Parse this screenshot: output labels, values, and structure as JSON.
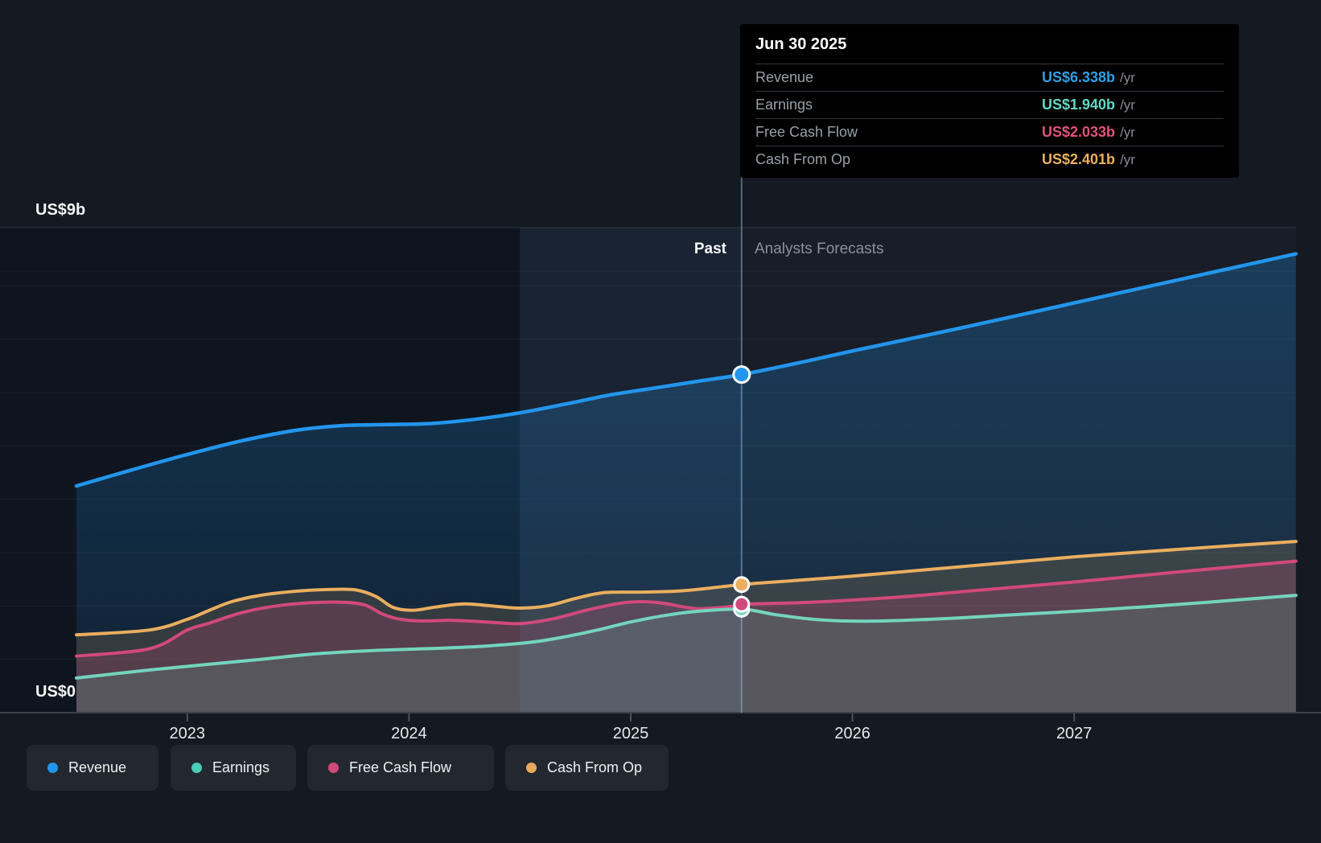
{
  "axis": {
    "top_label": "US$9b",
    "zero_label": "US$0"
  },
  "annotations": {
    "past_label": "Past",
    "forecast_label": "Analysts Forecasts"
  },
  "tooltip": {
    "date": "Jun 30 2025",
    "rows": [
      {
        "label": "Revenue",
        "value": "US$6.338b",
        "unit": "/yr",
        "color": "#2e9fe6"
      },
      {
        "label": "Earnings",
        "value": "US$1.940b",
        "unit": "/yr",
        "color": "#62d8c5"
      },
      {
        "label": "Free Cash Flow",
        "value": "US$2.033b",
        "unit": "/yr",
        "color": "#e2517d"
      },
      {
        "label": "Cash From Op",
        "value": "US$2.401b",
        "unit": "/yr",
        "color": "#eab05e"
      }
    ]
  },
  "legend": [
    {
      "label": "Revenue",
      "color": "#2196e8"
    },
    {
      "label": "Earnings",
      "color": "#4ccbb6"
    },
    {
      "label": "Free Cash Flow",
      "color": "#d2497b"
    },
    {
      "label": "Cash From Op",
      "color": "#e7a95c"
    }
  ],
  "chart_data": {
    "type": "area",
    "title": "Past and future earnings, revenue and cash flow (US$ billions per year)",
    "x_unit": "year",
    "x_range": [
      2022.5,
      2028.0
    ],
    "y_range": [
      0,
      9
    ],
    "y_unit": "US$ billions /yr",
    "grid": "horizontal, 1b spacing, faint",
    "legend_position": "bottom-left pills",
    "divider_x": 2025.5,
    "divider_date": "Jun 30 2025",
    "highlight_band": [
      2024.5,
      2025.5
    ],
    "x_ticks": [
      {
        "label": "2023",
        "year": 2023
      },
      {
        "label": "2024",
        "year": 2024
      },
      {
        "label": "2025",
        "year": 2025
      },
      {
        "label": "2026",
        "year": 2026
      },
      {
        "label": "2027",
        "year": 2027
      }
    ],
    "series": [
      {
        "name": "Revenue",
        "color": "#2395ec",
        "marker_value": 6.338,
        "points": [
          [
            2022.5,
            4.25
          ],
          [
            2022.75,
            4.55
          ],
          [
            2023.0,
            4.84
          ],
          [
            2023.25,
            5.1
          ],
          [
            2023.5,
            5.3
          ],
          [
            2023.7,
            5.38
          ],
          [
            2023.9,
            5.4
          ],
          [
            2024.1,
            5.42
          ],
          [
            2024.3,
            5.5
          ],
          [
            2024.5,
            5.62
          ],
          [
            2024.7,
            5.78
          ],
          [
            2024.9,
            5.95
          ],
          [
            2025.1,
            6.08
          ],
          [
            2025.3,
            6.21
          ],
          [
            2025.5,
            6.338
          ],
          [
            2025.75,
            6.55
          ],
          [
            2026.0,
            6.78
          ],
          [
            2026.5,
            7.22
          ],
          [
            2027.0,
            7.68
          ],
          [
            2027.5,
            8.14
          ],
          [
            2028.0,
            8.6
          ]
        ]
      },
      {
        "name": "Cash From Op",
        "color": "#eaae5f",
        "marker_value": 2.401,
        "points": [
          [
            2022.5,
            1.46
          ],
          [
            2022.83,
            1.55
          ],
          [
            2023.0,
            1.75
          ],
          [
            2023.1,
            1.92
          ],
          [
            2023.2,
            2.08
          ],
          [
            2023.33,
            2.2
          ],
          [
            2023.5,
            2.28
          ],
          [
            2023.65,
            2.31
          ],
          [
            2023.76,
            2.3
          ],
          [
            2023.85,
            2.18
          ],
          [
            2023.93,
            1.97
          ],
          [
            2024.02,
            1.92
          ],
          [
            2024.12,
            1.98
          ],
          [
            2024.25,
            2.04
          ],
          [
            2024.4,
            1.99
          ],
          [
            2024.5,
            1.96
          ],
          [
            2024.62,
            2.0
          ],
          [
            2024.75,
            2.14
          ],
          [
            2024.88,
            2.25
          ],
          [
            2025.05,
            2.26
          ],
          [
            2025.25,
            2.29
          ],
          [
            2025.5,
            2.401
          ],
          [
            2025.75,
            2.48
          ],
          [
            2026.0,
            2.56
          ],
          [
            2026.5,
            2.74
          ],
          [
            2027.0,
            2.92
          ],
          [
            2027.5,
            3.07
          ],
          [
            2028.0,
            3.21
          ]
        ]
      },
      {
        "name": "Free Cash Flow",
        "color": "#d2497b",
        "marker_value": 2.033,
        "points": [
          [
            2022.5,
            1.06
          ],
          [
            2022.83,
            1.2
          ],
          [
            2023.0,
            1.55
          ],
          [
            2023.1,
            1.68
          ],
          [
            2023.25,
            1.88
          ],
          [
            2023.4,
            2.0
          ],
          [
            2023.55,
            2.06
          ],
          [
            2023.7,
            2.07
          ],
          [
            2023.8,
            2.02
          ],
          [
            2023.88,
            1.85
          ],
          [
            2023.95,
            1.76
          ],
          [
            2024.05,
            1.72
          ],
          [
            2024.2,
            1.73
          ],
          [
            2024.35,
            1.7
          ],
          [
            2024.5,
            1.67
          ],
          [
            2024.65,
            1.76
          ],
          [
            2024.8,
            1.92
          ],
          [
            2024.95,
            2.05
          ],
          [
            2025.05,
            2.08
          ],
          [
            2025.15,
            2.05
          ],
          [
            2025.3,
            1.95
          ],
          [
            2025.45,
            1.99
          ],
          [
            2025.5,
            2.033
          ],
          [
            2025.75,
            2.06
          ],
          [
            2026.0,
            2.11
          ],
          [
            2026.25,
            2.18
          ],
          [
            2026.5,
            2.27
          ],
          [
            2027.0,
            2.45
          ],
          [
            2027.5,
            2.65
          ],
          [
            2028.0,
            2.84
          ]
        ]
      },
      {
        "name": "Earnings",
        "color": "#74d4be",
        "marker_value": 1.94,
        "points": [
          [
            2022.5,
            0.65
          ],
          [
            2022.83,
            0.8
          ],
          [
            2023.08,
            0.9
          ],
          [
            2023.33,
            1.0
          ],
          [
            2023.57,
            1.1
          ],
          [
            2023.81,
            1.16
          ],
          [
            2024.0,
            1.19
          ],
          [
            2024.15,
            1.21
          ],
          [
            2024.35,
            1.25
          ],
          [
            2024.55,
            1.32
          ],
          [
            2024.7,
            1.42
          ],
          [
            2024.85,
            1.55
          ],
          [
            2025.0,
            1.7
          ],
          [
            2025.15,
            1.82
          ],
          [
            2025.3,
            1.9
          ],
          [
            2025.5,
            1.94
          ],
          [
            2025.65,
            1.84
          ],
          [
            2025.8,
            1.76
          ],
          [
            2025.95,
            1.72
          ],
          [
            2026.15,
            1.72
          ],
          [
            2026.45,
            1.77
          ],
          [
            2026.7,
            1.83
          ],
          [
            2027.0,
            1.9
          ],
          [
            2027.3,
            1.98
          ],
          [
            2027.6,
            2.07
          ],
          [
            2028.0,
            2.2
          ]
        ]
      }
    ]
  }
}
